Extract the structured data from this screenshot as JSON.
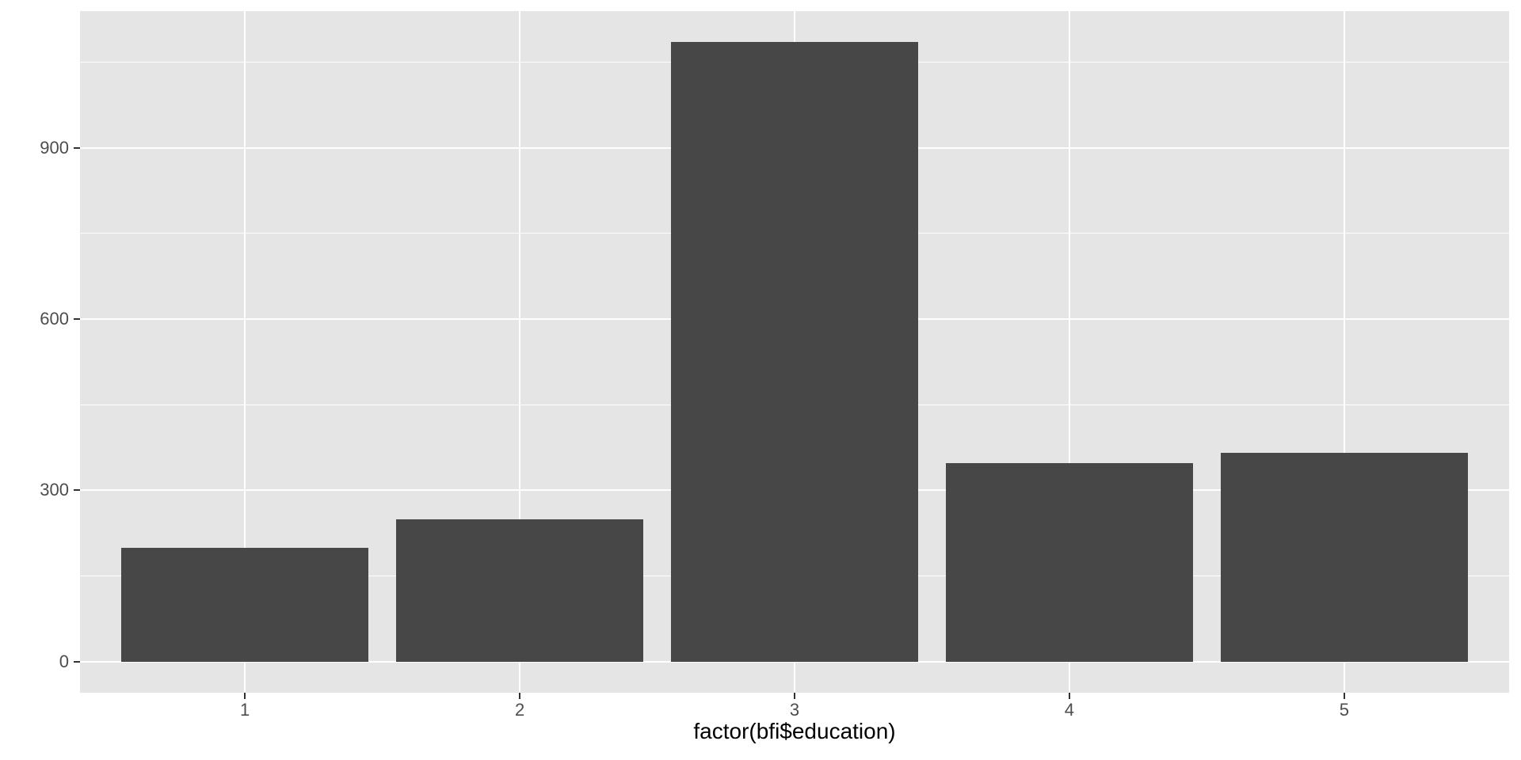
{
  "chart_data": {
    "type": "bar",
    "title": "",
    "xlabel": "factor(bfi$education)",
    "ylabel": "",
    "categories": [
      "1",
      "2",
      "3",
      "4",
      "5"
    ],
    "values": [
      200,
      250,
      1085,
      348,
      366
    ],
    "y_breaks": [
      0,
      300,
      600,
      900
    ],
    "y_minor_breaks": [
      150,
      450,
      750,
      1050
    ],
    "ylim": [
      0,
      1139
    ],
    "y_expansion": 0.05,
    "grid": "major and minor horizontal, major vertical at each category",
    "legend": "none",
    "style": "ggplot2 theme_grey",
    "colors": {
      "bar_fill": "#474747",
      "panel_background": "#E5E5E5",
      "gridline": "#FFFFFF",
      "axis_text": "#4D4D4D",
      "axis_ticks": "#333333",
      "axis_title": "#000000",
      "page_background": "#FFFFFF"
    }
  }
}
